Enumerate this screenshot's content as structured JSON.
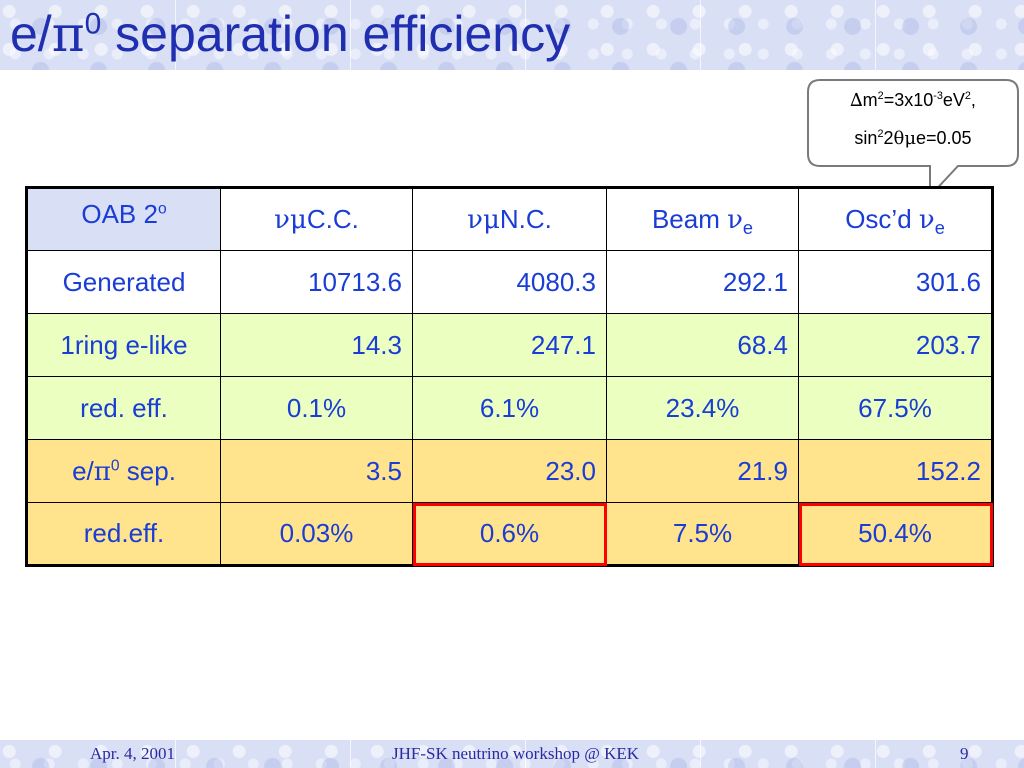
{
  "title": {
    "prefix": "e/",
    "pi": "π",
    "sup": "0",
    "rest": " separation efficiency"
  },
  "callout": {
    "line1": {
      "delta": "∆",
      "m": "m",
      "sup1": "2",
      "eq": "=3x10",
      "sup2": "-3",
      "ev": "eV",
      "sup3": "2",
      "comma": ","
    },
    "line2": {
      "sin": "sin",
      "sup": "2",
      "two": "2",
      "theta": "θ",
      "mu": "μ",
      "rest": "e=0.05"
    }
  },
  "table": {
    "corner": {
      "label": "OAB 2",
      "sup": "o"
    },
    "headers": [
      {
        "greek": "νμ",
        "text": "C.C."
      },
      {
        "greek": "νμ",
        "text": "N.C."
      },
      {
        "text": "Beam ",
        "greek": "ν",
        "sub": "e"
      },
      {
        "text": "Osc’d ",
        "greek": "ν",
        "sub": "e"
      }
    ],
    "rows": [
      {
        "label": "Generated",
        "values": [
          "10713.6",
          "4080.3",
          "292.1",
          "301.6"
        ]
      },
      {
        "label": "1ring e-like",
        "values": [
          "14.3",
          "247.1",
          "68.4",
          "203.7"
        ]
      },
      {
        "label": "red. eff.",
        "values": [
          "0.1%",
          "6.1%",
          "23.4%",
          "67.5%"
        ]
      },
      {
        "label_prefix": "e/",
        "label_pi": "π",
        "label_sup": "0",
        "label_rest": " sep.",
        "values": [
          "3.5",
          "23.0",
          "21.9",
          "152.2"
        ]
      },
      {
        "label": "red.eff.",
        "values": [
          "0.03%",
          "0.6%",
          "7.5%",
          "50.4%"
        ]
      }
    ]
  },
  "footer": {
    "date": "Apr. 4, 2001",
    "event": "JHF-SK neutrino workshop @ KEK",
    "page": "9"
  },
  "colors": {
    "title": "#1f2fb0",
    "table_text": "#1a3dd6",
    "highlight": "#ff0000",
    "row_green": "#eaffc0",
    "row_yellow": "#ffe38d",
    "band": "#d9dff5"
  }
}
